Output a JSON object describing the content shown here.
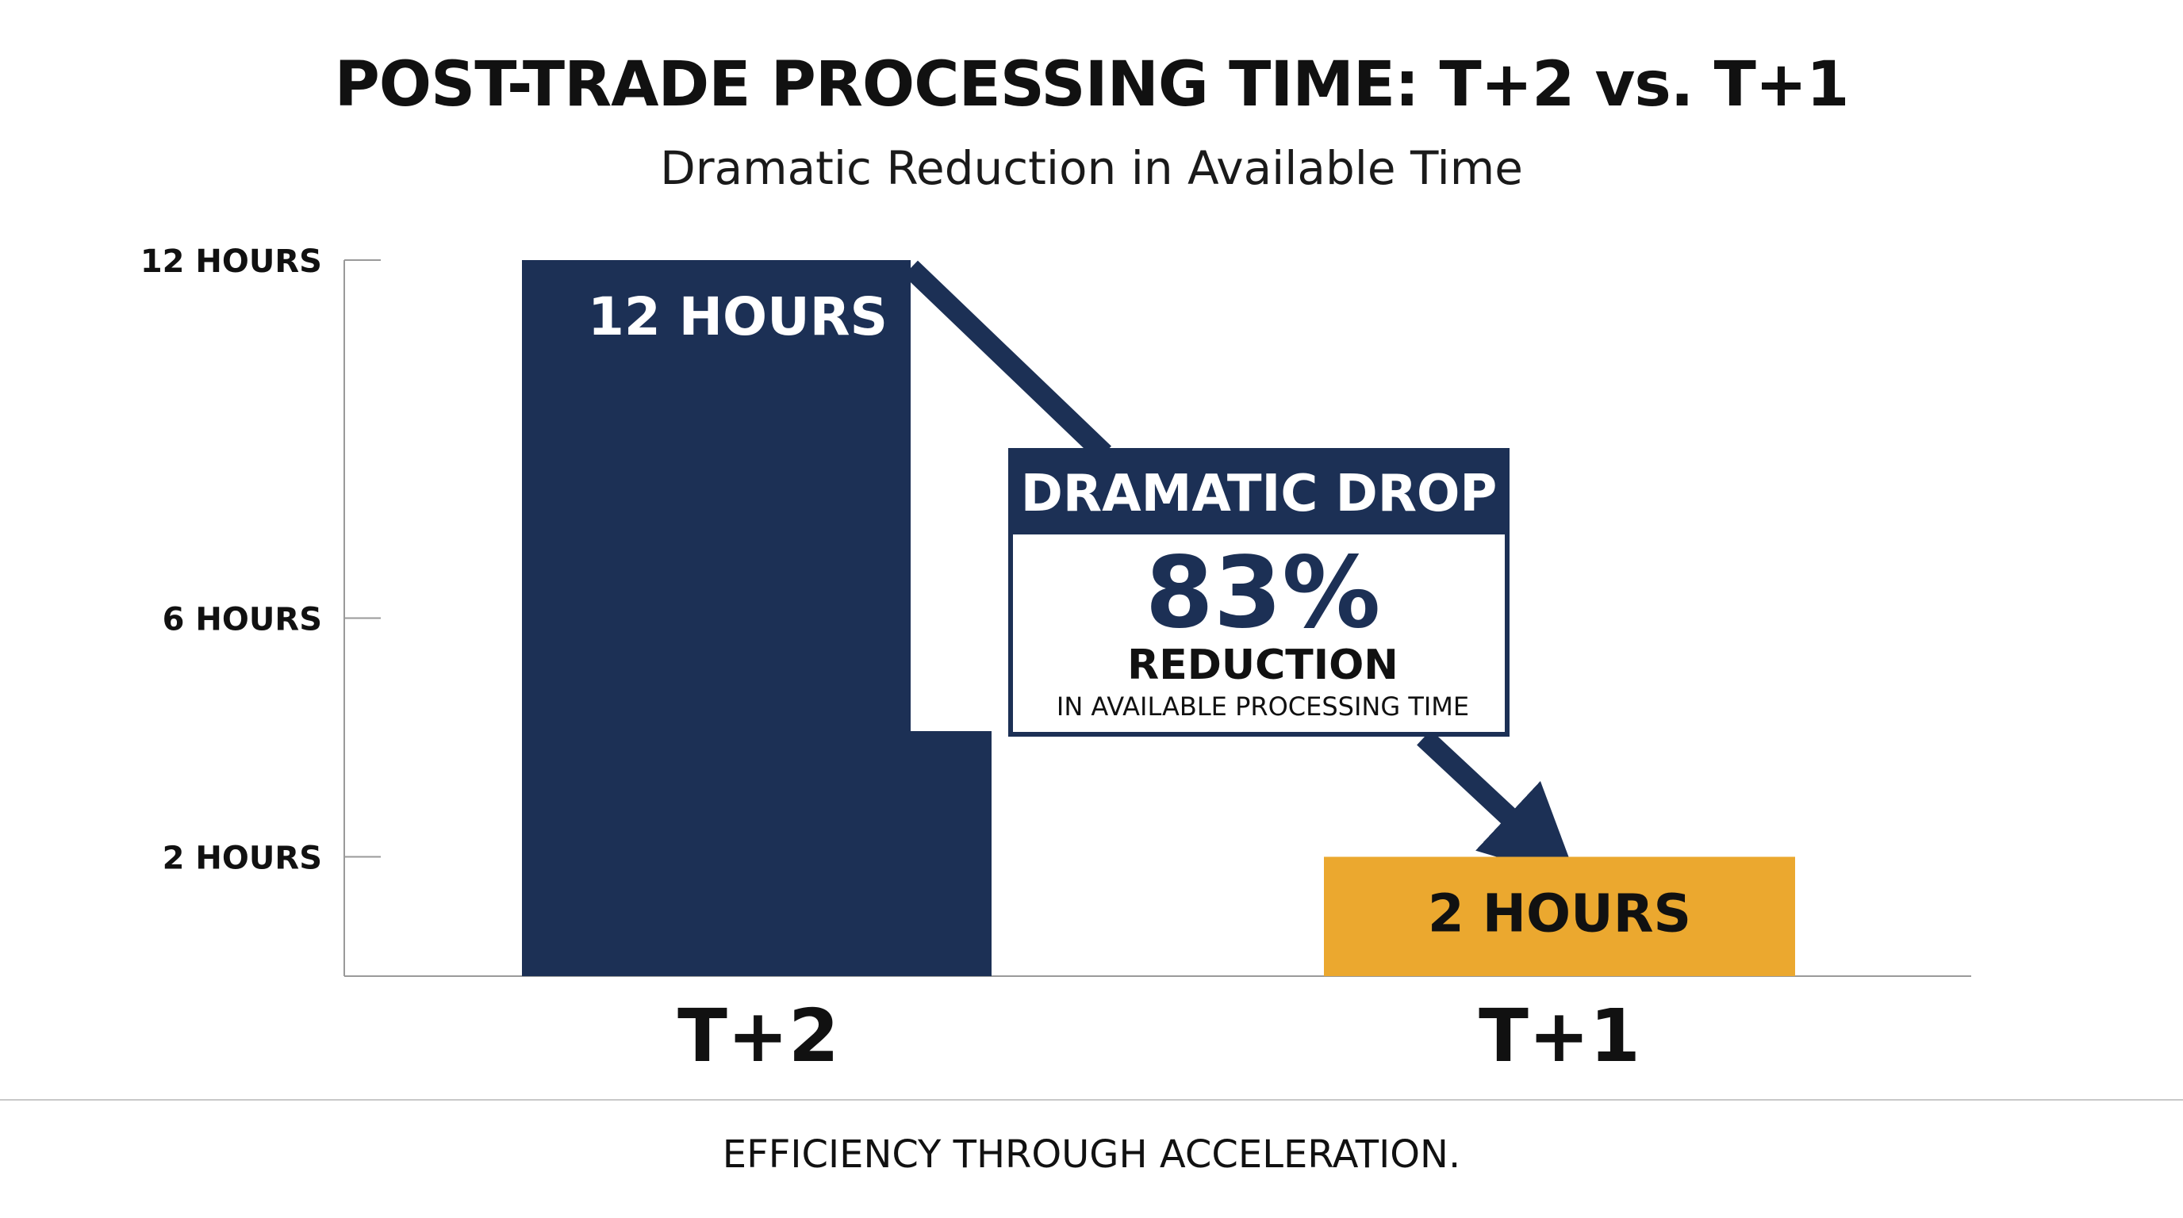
{
  "header": {
    "title": "POST-TRADE PROCESSING TIME: T+2 vs. T+1",
    "subtitle": "Dramatic Reduction in Available Time"
  },
  "chart_data": {
    "type": "bar",
    "categories": [
      "T+2",
      "T+1"
    ],
    "values": [
      12,
      2
    ],
    "value_labels": [
      "12 HOURS",
      "2 HOURS"
    ],
    "yticks": [
      {
        "value": 12,
        "label": "12 HOURS"
      },
      {
        "value": 6,
        "label": "6 HOURS"
      },
      {
        "value": 2,
        "label": "2 HOURS"
      }
    ],
    "ylim": [
      0,
      12
    ],
    "colors": [
      "#1c3055",
      "#eba82f"
    ],
    "grid": false,
    "annotation": {
      "heading": "DRAMATIC DROP",
      "value": "83%",
      "label": "REDUCTION",
      "sublabel": "IN AVAILABLE PROCESSING TIME"
    }
  },
  "footer": {
    "tagline": "EFFICIENCY THROUGH ACCELERATION."
  }
}
